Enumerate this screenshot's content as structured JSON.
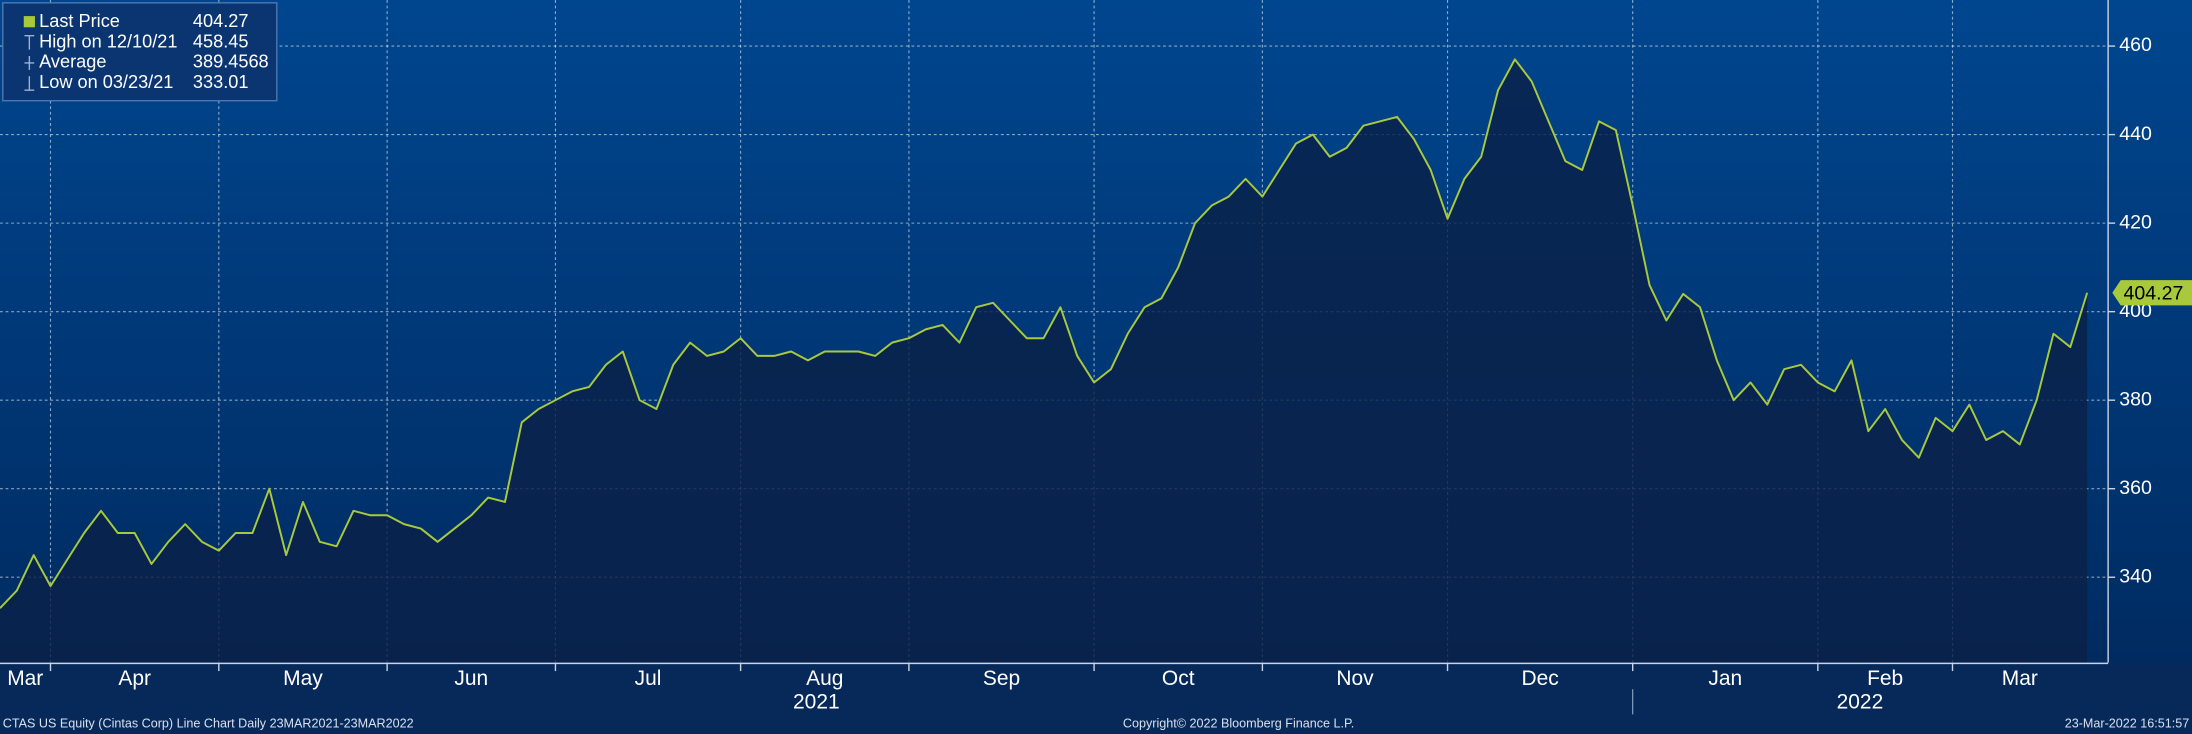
{
  "chart_data": {
    "type": "line",
    "categories": [
      "Mar",
      null,
      null,
      "Apr",
      null,
      null,
      null,
      null,
      null,
      null,
      null,
      null,
      null,
      "May",
      null,
      null,
      null,
      null,
      null,
      null,
      null,
      null,
      null,
      "Jun",
      null,
      null,
      null,
      null,
      null,
      null,
      null,
      null,
      null,
      "Jul",
      null,
      null,
      null,
      null,
      null,
      null,
      null,
      null,
      null,
      null,
      "Aug",
      null,
      null,
      null,
      null,
      null,
      null,
      null,
      null,
      null,
      "Sep",
      null,
      null,
      null,
      null,
      null,
      null,
      null,
      null,
      null,
      null,
      "Oct",
      null,
      null,
      null,
      null,
      null,
      null,
      null,
      null,
      null,
      "Nov",
      null,
      null,
      null,
      null,
      null,
      null,
      null,
      null,
      null,
      null,
      "Dec",
      null,
      null,
      null,
      null,
      null,
      null,
      null,
      null,
      null,
      null,
      "Jan",
      null,
      null,
      null,
      null,
      null,
      null,
      null,
      null,
      null,
      null,
      "Feb",
      null,
      null,
      null,
      null,
      null,
      null,
      null,
      "Mar",
      null,
      null,
      null,
      null,
      null,
      null,
      null,
      null
    ],
    "year_labels": [
      {
        "label": "2021",
        "first_month": "Mar"
      },
      {
        "label": "2022",
        "first_month": "Jan"
      }
    ],
    "series": [
      {
        "name": "Last Price",
        "color": "#a9c93d",
        "values": [
          333,
          337,
          345,
          338,
          344,
          350,
          355,
          350,
          350,
          343,
          348,
          352,
          348,
          346,
          350,
          350,
          360,
          345,
          357,
          348,
          347,
          355,
          354,
          354,
          352,
          351,
          348,
          351,
          354,
          358,
          357,
          375,
          378,
          380,
          382,
          383,
          388,
          391,
          380,
          378,
          388,
          393,
          390,
          391,
          394,
          390,
          390,
          391,
          389,
          391,
          391,
          391,
          390,
          393,
          394,
          396,
          397,
          393,
          401,
          402,
          398,
          394,
          394,
          401,
          390,
          384,
          387,
          395,
          401,
          403,
          410,
          420,
          424,
          426,
          430,
          426,
          432,
          438,
          440,
          435,
          437,
          442,
          443,
          444,
          439,
          432,
          421,
          430,
          435,
          450,
          457,
          452,
          443,
          434,
          432,
          443,
          441,
          424,
          406,
          398,
          404,
          401,
          389,
          380,
          384,
          379,
          387,
          388,
          384,
          382,
          389,
          373,
          378,
          371,
          367,
          376,
          373,
          379,
          371,
          373,
          370,
          380,
          395,
          392,
          404.27
        ]
      }
    ],
    "legend": [
      {
        "label": "Last Price",
        "value": 404.27
      },
      {
        "label": "High on 12/10/21",
        "value": 458.45
      },
      {
        "label": "Average",
        "value": 389.4568
      },
      {
        "label": "Low on 03/23/21",
        "value": 333.01
      }
    ],
    "ylim": [
      320.7,
      470.4
    ],
    "yticks": [
      340,
      360,
      380,
      400,
      420,
      440,
      460
    ],
    "y_axis_side": "right",
    "grid": true,
    "footer": {
      "left": "CTAS US Equity (Cintas Corp) Line Chart  Daily 23MAR2021-23MAR2022",
      "center": "Copyright© 2022 Bloomberg Finance L.P.",
      "right": "23-Mar-2022 16:51:57"
    }
  }
}
